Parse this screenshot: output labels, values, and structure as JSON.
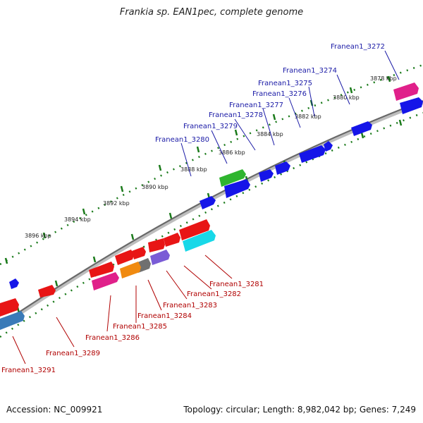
{
  "title": "Frankia sp. EAN1pec, complete genome",
  "footer": {
    "accession": "Accession: NC_009921",
    "summary": "Topology: circular; Length: 8,982,042 bp; Genes: 7,249"
  },
  "colors": {
    "backbone": "#888888",
    "tick": "#1a7a1a",
    "top_label": "#1a1aa6",
    "bottom_label": "#b00000"
  },
  "scale_labels": [
    "3878 kbp",
    "3880 kbp",
    "3882 kbp",
    "3884 kbp",
    "3886 kbp",
    "3888 kbp",
    "3890 kbp",
    "3892 kbp",
    "3894 kbp",
    "3896 kbp"
  ],
  "top_labels": [
    "Franean1_3272",
    "Franean1_3274",
    "Franean1_3275",
    "Franean1_3276",
    "Franean1_3277",
    "Franean1_3278",
    "Franean1_3279",
    "Franean1_3280"
  ],
  "bottom_labels": [
    "Franean1_3281",
    "Franean1_3282",
    "Franean1_3283",
    "Franean1_3284",
    "Franean1_3285",
    "Franean1_3286",
    "Franean1_3289",
    "Franean1_3291"
  ]
}
